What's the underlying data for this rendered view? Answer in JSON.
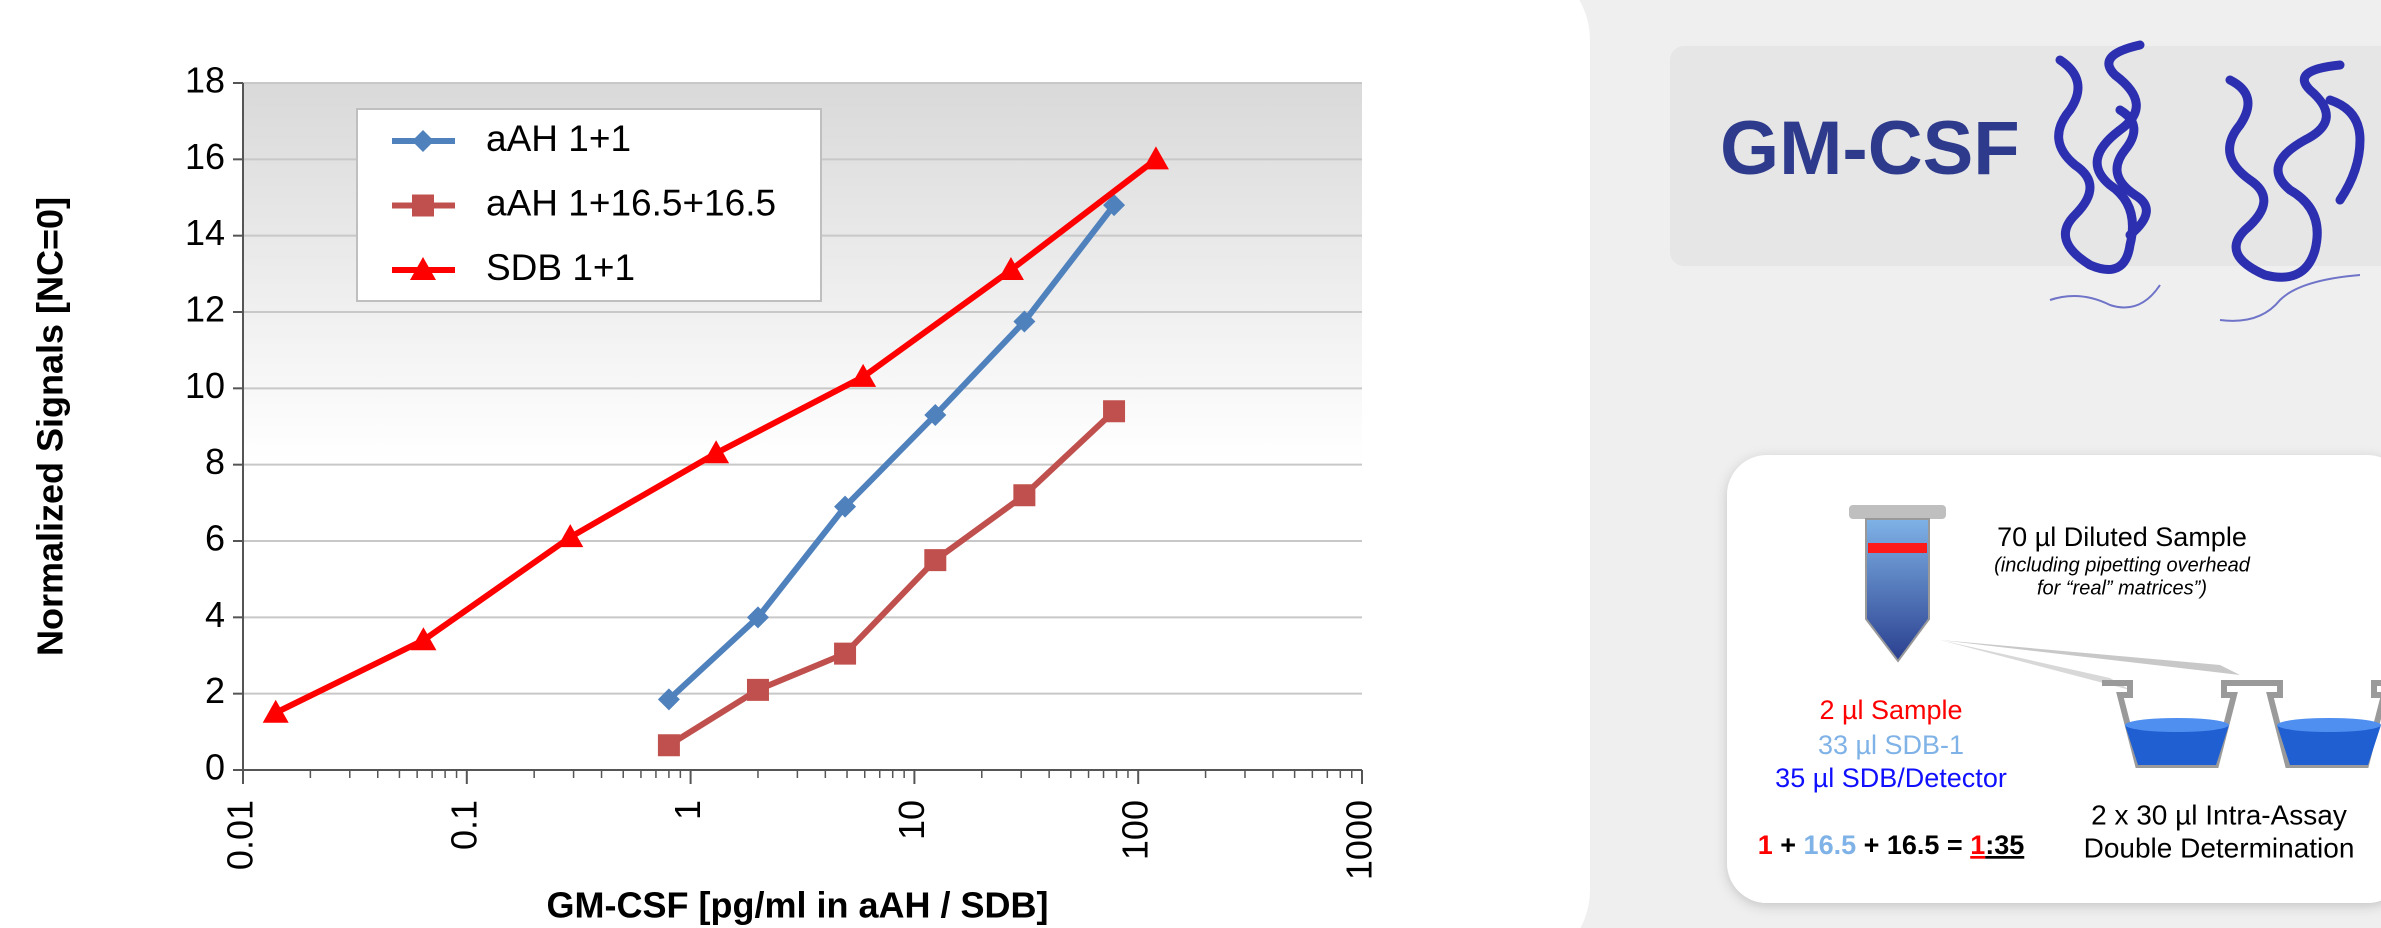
{
  "chart_data": {
    "type": "line",
    "x_label": "GM-CSF [pg/ml in aAH / SDB]",
    "y_label": "Normalized Signals [NC=0]",
    "log_x": true,
    "xlim": [
      0.01,
      1000
    ],
    "xticks": [
      0.01,
      0.1,
      1,
      10,
      100,
      1000
    ],
    "ylim": [
      0,
      18
    ],
    "yticks": [
      0,
      2,
      4,
      6,
      8,
      10,
      12,
      14,
      16,
      18
    ],
    "grid": true,
    "legend": "upper left",
    "series": [
      {
        "name": "aAH 1+1",
        "color": "#4f81bd",
        "marker": "diamond",
        "x": [
          0.8,
          2.0,
          4.9,
          12.4,
          31,
          78
        ],
        "values": [
          1.85,
          4.0,
          6.9,
          9.3,
          11.75,
          14.8
        ]
      },
      {
        "name": "aAH 1+16.5+16.5",
        "color": "#c0504d",
        "marker": "square",
        "x": [
          0.8,
          2.0,
          4.9,
          12.4,
          31,
          78
        ],
        "values": [
          0.65,
          2.1,
          3.05,
          5.5,
          7.2,
          9.4
        ]
      },
      {
        "name": "SDB 1+1",
        "color": "#ff0000",
        "marker": "triangle",
        "x": [
          0.014,
          0.064,
          0.29,
          1.3,
          5.9,
          27,
          120
        ],
        "values": [
          1.5,
          3.4,
          6.1,
          8.3,
          10.3,
          13.1,
          16.0
        ]
      }
    ]
  },
  "panel": {
    "title": "GM-CSF",
    "volume": "70 µl Diluted Sample",
    "note": [
      "(including pipetting overhead",
      "for “real” matrices”)"
    ],
    "components": [
      "2 µl Sample",
      "33 µl SDB-1",
      "35 µl SDB/Detector"
    ],
    "formula": [
      "1",
      " + ",
      "16.5",
      " + 16.5 = ",
      "1",
      ":35"
    ],
    "assay": [
      "2 x 30 µl Intra-Assay",
      "Double Determination"
    ]
  }
}
